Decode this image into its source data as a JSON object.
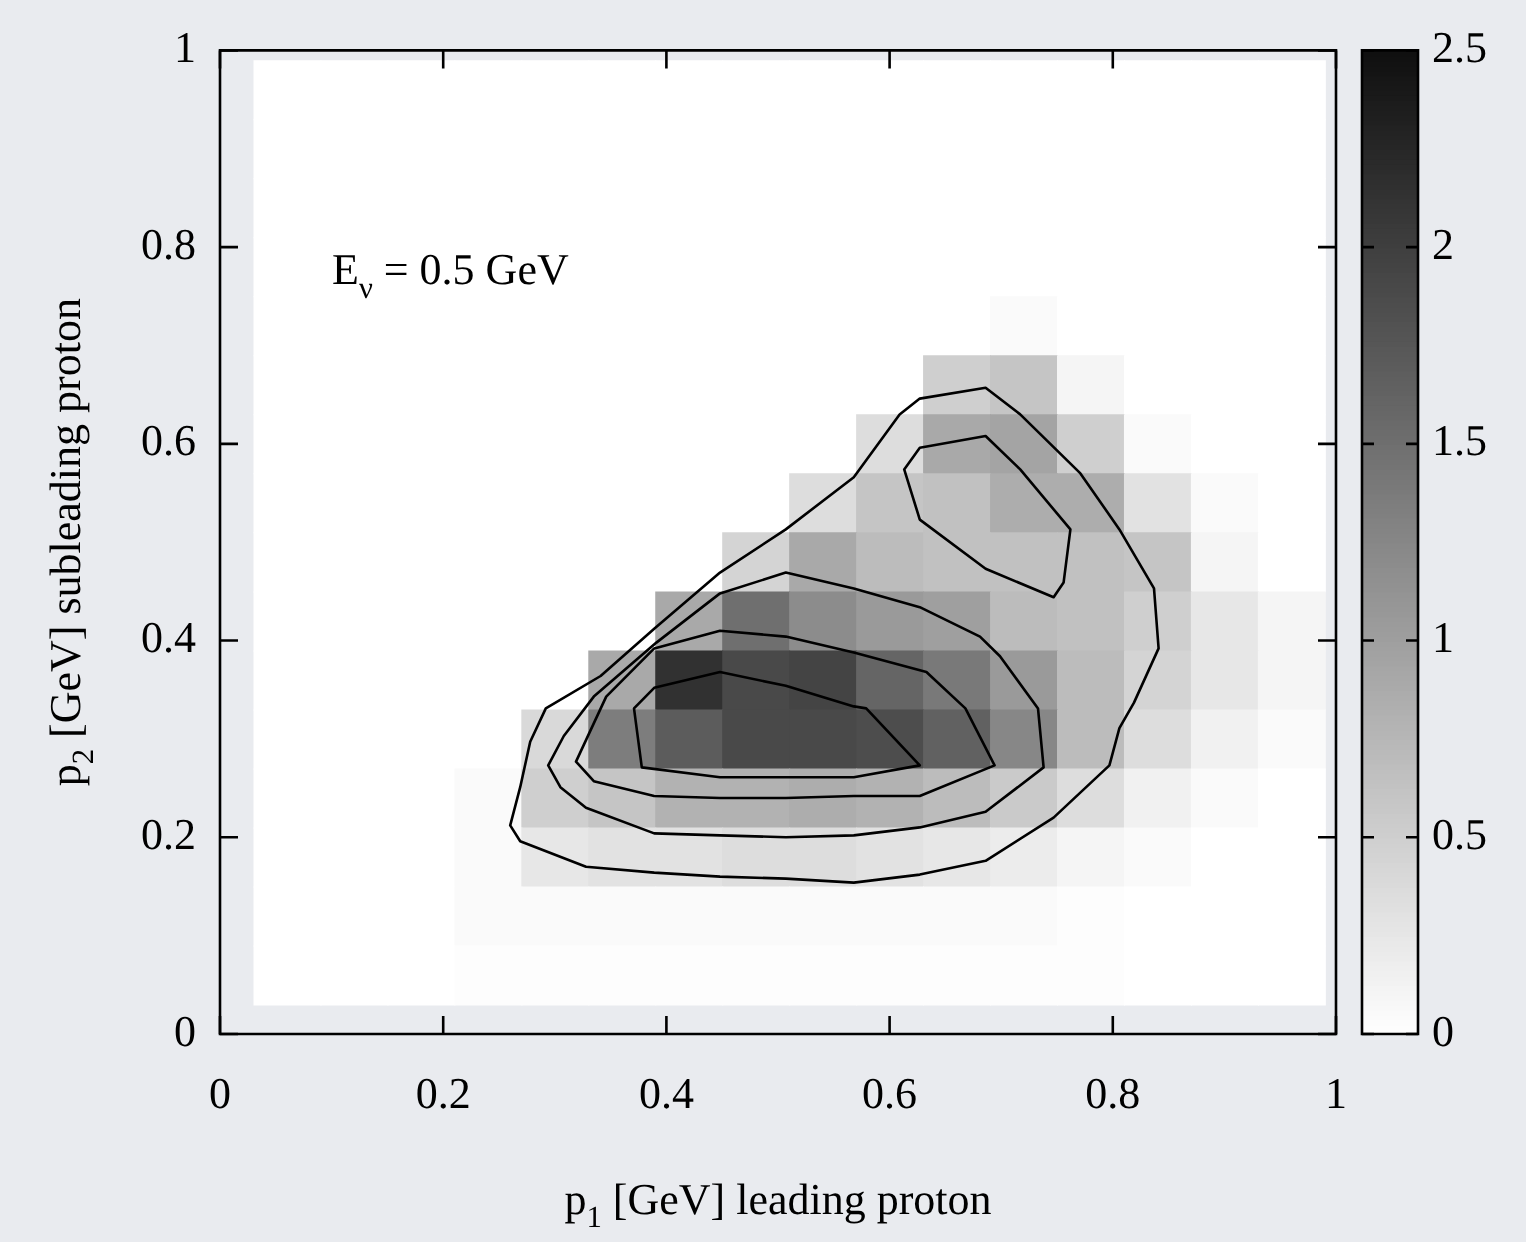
{
  "chart_data": {
    "type": "heatmap",
    "xlabel": "p$_{1}$ [GeV] leading proton",
    "ylabel": "p$_{2}$ [GeV] subleading proton",
    "annotations": [
      "E$_{ν}$ = 0.5 GeV"
    ],
    "x": [
      0.06,
      0.12,
      0.18,
      0.24,
      0.3,
      0.36,
      0.42,
      0.48,
      0.54,
      0.6,
      0.66,
      0.72,
      0.78,
      0.84,
      0.9,
      0.96
    ],
    "y": [
      0.96,
      0.9,
      0.84,
      0.78,
      0.72,
      0.66,
      0.6,
      0.54,
      0.48,
      0.42,
      0.36,
      0.3,
      0.24,
      0.18,
      0.12,
      0.06
    ],
    "cells": [
      [
        0,
        0,
        0,
        0,
        0,
        0,
        0,
        0,
        0,
        0,
        0,
        0,
        0,
        0,
        0,
        0
      ],
      [
        0,
        0,
        0,
        0,
        0,
        0,
        0,
        0,
        0,
        0,
        0,
        0,
        0,
        0,
        0,
        0
      ],
      [
        0,
        0,
        0,
        0,
        0,
        0,
        0,
        0,
        0,
        0,
        0,
        0,
        0,
        0,
        0,
        0
      ],
      [
        0,
        0,
        0,
        0,
        0,
        0,
        0,
        0,
        0,
        0,
        0,
        0,
        0,
        0,
        0,
        0
      ],
      [
        0,
        0,
        0,
        0,
        0,
        0,
        0,
        0,
        0,
        0,
        0,
        0.05,
        0,
        0,
        0,
        0
      ],
      [
        0,
        0,
        0,
        0,
        0,
        0,
        0,
        0,
        0,
        0,
        0.5,
        0.6,
        0.1,
        0,
        0,
        0
      ],
      [
        0,
        0,
        0,
        0,
        0,
        0,
        0,
        0,
        0,
        0.35,
        0.9,
        0.95,
        0.5,
        0.05,
        0,
        0
      ],
      [
        0,
        0,
        0,
        0,
        0,
        0,
        0,
        0,
        0.35,
        0.6,
        0.65,
        0.85,
        0.85,
        0.3,
        0.05,
        0
      ],
      [
        0,
        0,
        0,
        0,
        0,
        0,
        0,
        0.45,
        0.9,
        0.7,
        0.65,
        0.65,
        0.65,
        0.6,
        0.1,
        0
      ],
      [
        0,
        0,
        0,
        0,
        0,
        0,
        0.9,
        1.5,
        1.2,
        1.05,
        1.0,
        0.7,
        0.65,
        0.5,
        0.25,
        0.1
      ],
      [
        0,
        0,
        0,
        0,
        0,
        0.9,
        2.15,
        1.9,
        1.95,
        1.6,
        1.4,
        1.05,
        0.7,
        0.45,
        0.25,
        0.1
      ],
      [
        0,
        0,
        0,
        0,
        0.4,
        1.35,
        1.7,
        1.9,
        1.9,
        1.85,
        1.65,
        1.25,
        0.7,
        0.35,
        0.15,
        0.05
      ],
      [
        0,
        0,
        0,
        0.05,
        0.5,
        0.6,
        0.8,
        0.8,
        0.85,
        0.8,
        0.7,
        0.55,
        0.35,
        0.15,
        0.05,
        0
      ],
      [
        0,
        0,
        0,
        0.05,
        0.25,
        0.3,
        0.3,
        0.35,
        0.35,
        0.3,
        0.25,
        0.2,
        0.1,
        0.05,
        0,
        0
      ],
      [
        0,
        0,
        0,
        0.05,
        0.05,
        0.05,
        0.05,
        0.05,
        0.05,
        0.05,
        0.05,
        0.05,
        0.02,
        0,
        0,
        0
      ],
      [
        0,
        0,
        0,
        0.02,
        0.02,
        0.02,
        0.02,
        0.02,
        0.02,
        0.02,
        0.02,
        0.02,
        0.02,
        0,
        0,
        0
      ]
    ],
    "xlim": [
      0,
      1
    ],
    "xticks": [
      0,
      0.2,
      0.4,
      0.6,
      0.8,
      1
    ],
    "ylim": [
      0,
      1
    ],
    "yticks": [
      0,
      0.2,
      0.4,
      0.6,
      0.8,
      1
    ],
    "clim": [
      0,
      2.5
    ],
    "cticks": [
      0,
      0.5,
      1,
      1.5,
      2,
      2.5
    ]
  }
}
